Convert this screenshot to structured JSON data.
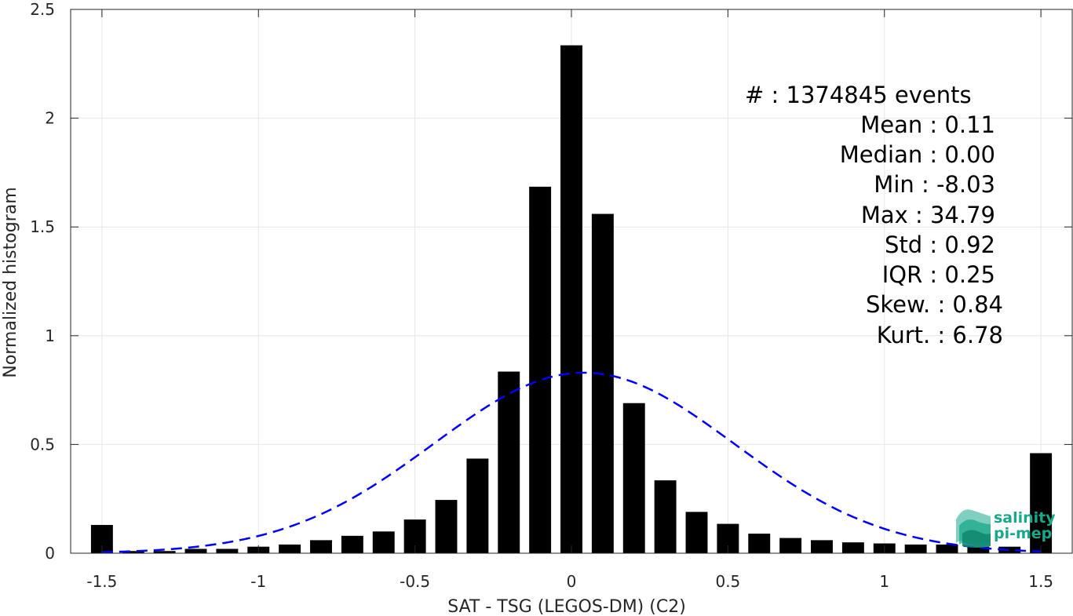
{
  "chart_data": {
    "type": "bar",
    "xlabel": "SAT - TSG (LEGOS-DM) (C2)",
    "ylabel": "Normalized histogram",
    "xlim": [
      -1.6,
      1.6
    ],
    "ylim": [
      0,
      2.5
    ],
    "grid": true,
    "x_ticks": [
      {
        "value": -1.5,
        "label": "-1.5"
      },
      {
        "value": -1.0,
        "label": "-1"
      },
      {
        "value": -0.5,
        "label": "-0.5"
      },
      {
        "value": 0.0,
        "label": "0"
      },
      {
        "value": 0.5,
        "label": "0.5"
      },
      {
        "value": 1.0,
        "label": "1"
      },
      {
        "value": 1.5,
        "label": "1.5"
      }
    ],
    "y_ticks": [
      {
        "value": 0,
        "label": "0"
      },
      {
        "value": 0.5,
        "label": "0.5"
      },
      {
        "value": 1,
        "label": "1"
      },
      {
        "value": 1.5,
        "label": "1.5"
      },
      {
        "value": 2,
        "label": "2"
      },
      {
        "value": 2.5,
        "label": "2.5"
      }
    ],
    "bar_color": "#000000",
    "bar_width": 0.07,
    "bars": [
      {
        "x": -1.5,
        "y": 0.13
      },
      {
        "x": -1.4,
        "y": 0.01
      },
      {
        "x": -1.3,
        "y": 0.01
      },
      {
        "x": -1.2,
        "y": 0.02
      },
      {
        "x": -1.1,
        "y": 0.02
      },
      {
        "x": -1.0,
        "y": 0.03
      },
      {
        "x": -0.9,
        "y": 0.04
      },
      {
        "x": -0.8,
        "y": 0.06
      },
      {
        "x": -0.7,
        "y": 0.08
      },
      {
        "x": -0.6,
        "y": 0.1
      },
      {
        "x": -0.5,
        "y": 0.155
      },
      {
        "x": -0.4,
        "y": 0.245
      },
      {
        "x": -0.3,
        "y": 0.435
      },
      {
        "x": -0.2,
        "y": 0.835
      },
      {
        "x": -0.1,
        "y": 1.685
      },
      {
        "x": 0.0,
        "y": 2.335
      },
      {
        "x": 0.1,
        "y": 1.56
      },
      {
        "x": 0.2,
        "y": 0.69
      },
      {
        "x": 0.3,
        "y": 0.335
      },
      {
        "x": 0.4,
        "y": 0.19
      },
      {
        "x": 0.5,
        "y": 0.135
      },
      {
        "x": 0.6,
        "y": 0.09
      },
      {
        "x": 0.7,
        "y": 0.07
      },
      {
        "x": 0.8,
        "y": 0.06
      },
      {
        "x": 0.9,
        "y": 0.05
      },
      {
        "x": 1.0,
        "y": 0.045
      },
      {
        "x": 1.1,
        "y": 0.04
      },
      {
        "x": 1.2,
        "y": 0.04
      },
      {
        "x": 1.3,
        "y": 0.03
      },
      {
        "x": 1.4,
        "y": 0.03
      },
      {
        "x": 1.5,
        "y": 0.46
      }
    ],
    "fit_curve": {
      "style": "dashed",
      "color": "#0000ff",
      "x_range": [
        -1.5,
        1.5
      ],
      "mean": 0.04,
      "sigma": 0.48,
      "peak": 0.83
    },
    "stats_lines": [
      "#  : 1374845 events",
      "Mean : 0.11",
      "Median : 0.00",
      "Min : -8.03",
      "Max : 34.79",
      "Std : 0.92",
      "IQR : 0.25",
      "Skew. : 0.84",
      "Kurt. : 6.78"
    ]
  },
  "logo": {
    "line1": "salinity",
    "line2": "pi-mep",
    "color": "#1aa88a"
  }
}
